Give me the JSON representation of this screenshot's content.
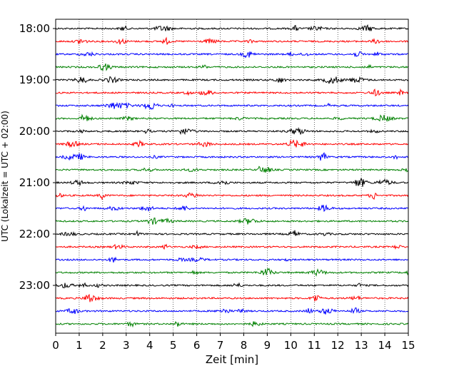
{
  "chart_data": {
    "type": "line",
    "title": "",
    "xlabel": "Zeit  [min]",
    "ylabel": "UTC (Lokalzeit = UTC + 02:00)",
    "xlim": [
      0,
      15
    ],
    "x_ticks": [
      0,
      1,
      2,
      3,
      4,
      5,
      6,
      7,
      8,
      9,
      10,
      11,
      12,
      13,
      14,
      15
    ],
    "y_tick_labels": [
      "18:00",
      "19:00",
      "20:00",
      "21:00",
      "22:00",
      "23:00"
    ],
    "grid": "vertical dotted lines at each minute",
    "trace_interval_min": 15,
    "trace_colors": [
      "#000000",
      "#ff0000",
      "#0000ff",
      "#008000"
    ],
    "traces": [
      "18:00",
      "18:15",
      "18:30",
      "18:45",
      "19:00",
      "19:15",
      "19:30",
      "19:45",
      "20:00",
      "20:15",
      "20:30",
      "20:45",
      "21:00",
      "21:15",
      "21:30",
      "21:45",
      "22:00",
      "22:15",
      "22:30",
      "22:45",
      "23:00",
      "23:15",
      "23:30",
      "23:45"
    ]
  }
}
